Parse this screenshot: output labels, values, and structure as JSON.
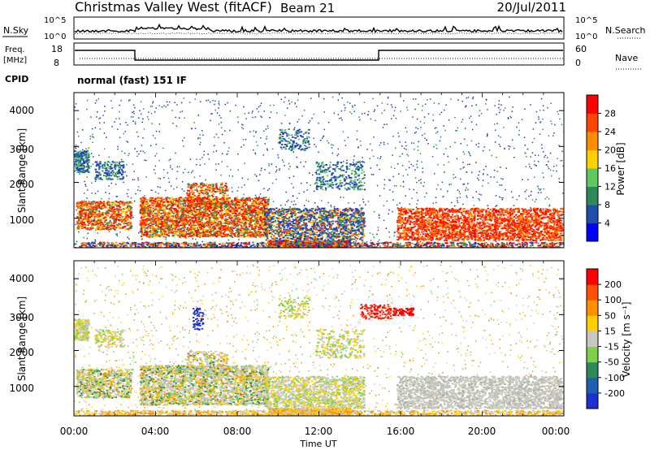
{
  "header": {
    "title": "Christmas Valley West (fitACF)",
    "beam": "Beam 21",
    "date": "20/Jul/2011"
  },
  "status": {
    "nsky_label": "N.Sky",
    "nsearch_label": "N.Search",
    "noise_ticks": [
      "10^5",
      "10^0"
    ],
    "freq_label_line1": "Freq.",
    "freq_label_line2": "[MHz]",
    "freq_ticks": [
      "18",
      "8"
    ],
    "nave_label": "Nave",
    "nave_ticks": [
      "60",
      "0"
    ],
    "cpid_label": "CPID",
    "cpid_value": "normal (fast) 151 IF"
  },
  "chart_data": [
    {
      "type": "heatmap",
      "xlabel": "",
      "ylabel": "Slant Range [km]",
      "yticks": [
        "4000",
        "3000",
        "2000",
        "1000"
      ],
      "ylim": [
        180,
        4500
      ],
      "xlim": [
        "00:00",
        "24:00"
      ],
      "colorbar": {
        "label": "Power [dB]",
        "ticks": [
          "28",
          "24",
          "20",
          "16",
          "12",
          "8",
          "4"
        ],
        "colors": [
          "#0000ff",
          "#1e4faf",
          "#2e8b57",
          "#5fc85f",
          "#ffd000",
          "#ff8c00",
          "#ff4500",
          "#ff0000"
        ]
      }
    },
    {
      "type": "heatmap",
      "xlabel": "Time UT",
      "ylabel": "Slant Range [km]",
      "yticks": [
        "4000",
        "3000",
        "2000",
        "1000"
      ],
      "ylim": [
        180,
        4500
      ],
      "xlim": [
        "00:00",
        "24:00"
      ],
      "xticks": [
        "00:00",
        "04:00",
        "08:00",
        "12:00",
        "16:00",
        "20:00",
        "00:00"
      ],
      "colorbar": {
        "label": "Velocity [m s⁻¹]",
        "ticks": [
          "200",
          "100",
          "50",
          "15",
          "-15",
          "-50",
          "-100",
          "-200"
        ],
        "colors": [
          "#1e2fd0",
          "#1e5fb0",
          "#2e8b57",
          "#7cd04a",
          "#c8c8c0",
          "#ffd000",
          "#ff9000",
          "#ff5000",
          "#ff0000"
        ]
      }
    }
  ]
}
